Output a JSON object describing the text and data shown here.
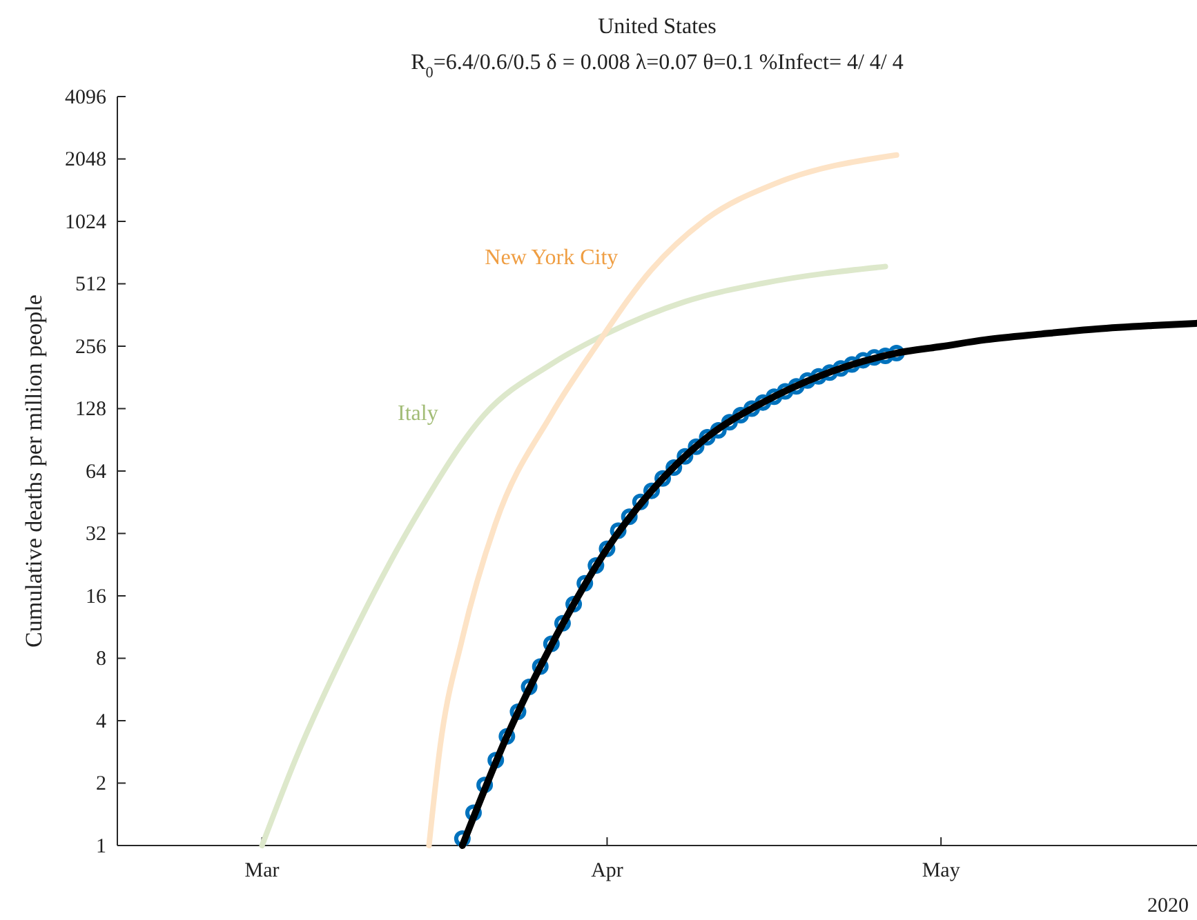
{
  "chart_data": {
    "type": "line",
    "title": "United States",
    "subtitle": "R$_{0}$=6.4/0.6/0.5  δ = 0.008  λ=0.07  θ=0.1  %Infect= 4/ 4/ 4",
    "ylabel": "Cumulative deaths per million people",
    "annotations": [
      "2020"
    ],
    "log": "y",
    "grid": false,
    "legend": false,
    "xlim": [
      "2020-02-17",
      "2020-05-24"
    ],
    "xticks": [
      {
        "value": "2020-03-01",
        "label": "Mar"
      },
      {
        "value": "2020-04-01",
        "label": "Apr"
      },
      {
        "value": "2020-05-01",
        "label": "May"
      }
    ],
    "ylim": [
      1,
      4096
    ],
    "yticks": [
      1,
      2,
      4,
      8,
      16,
      32,
      64,
      128,
      256,
      512,
      1024,
      2048,
      4096
    ],
    "series": [
      {
        "name": "Italy",
        "type": "line",
        "color": "#dde8cb",
        "x": [
          "2020-03-01",
          "2020-03-04",
          "2020-03-09",
          "2020-03-15",
          "2020-03-21",
          "2020-03-27",
          "2020-04-01",
          "2020-04-08",
          "2020-04-15",
          "2020-04-26"
        ],
        "values": [
          1,
          2.6,
          10,
          40,
          120,
          210,
          295,
          420,
          515,
          620
        ]
      },
      {
        "name": "New York City",
        "type": "line",
        "color": "#fde3c6",
        "x": [
          "2020-03-16",
          "2020-03-17",
          "2020-03-19",
          "2020-03-22",
          "2020-03-27",
          "2020-03-31",
          "2020-04-05",
          "2020-04-10",
          "2020-04-16",
          "2020-04-27"
        ],
        "values": [
          1,
          3,
          10,
          36,
          120,
          256,
          600,
          1060,
          1550,
          2140
        ]
      },
      {
        "type": "scatter",
        "color": "#0072bd",
        "marker": "circle",
        "x": [
          "2020-03-19",
          "2020-03-20",
          "2020-03-21",
          "2020-03-22",
          "2020-03-23",
          "2020-03-24",
          "2020-03-25",
          "2020-03-26",
          "2020-03-27",
          "2020-03-28",
          "2020-03-29",
          "2020-03-30",
          "2020-03-31",
          "2020-04-01",
          "2020-04-02",
          "2020-04-03",
          "2020-04-04",
          "2020-04-05",
          "2020-04-06",
          "2020-04-07",
          "2020-04-08",
          "2020-04-09",
          "2020-04-10",
          "2020-04-11",
          "2020-04-12",
          "2020-04-13",
          "2020-04-14",
          "2020-04-15",
          "2020-04-16",
          "2020-04-17",
          "2020-04-18",
          "2020-04-19",
          "2020-04-20",
          "2020-04-21",
          "2020-04-22",
          "2020-04-23",
          "2020-04-24",
          "2020-04-25",
          "2020-04-26",
          "2020-04-27"
        ],
        "values": [
          1.08,
          1.44,
          1.96,
          2.58,
          3.36,
          4.42,
          5.82,
          7.3,
          9.4,
          11.8,
          14.6,
          18.4,
          22.4,
          27,
          33,
          38.5,
          45.4,
          51.4,
          58.9,
          66.5,
          75.3,
          83.8,
          93.2,
          100.6,
          110,
          119,
          128,
          137,
          146,
          155,
          164,
          175,
          183,
          191,
          200,
          209,
          219,
          226,
          230,
          237
        ]
      },
      {
        "type": "line",
        "color": "#000000",
        "x": [
          "2020-03-19",
          "2020-03-23",
          "2020-03-26",
          "2020-03-29",
          "2020-04-01",
          "2020-04-05",
          "2020-04-10",
          "2020-04-15",
          "2020-04-20",
          "2020-04-27",
          "2020-05-01",
          "2020-05-05",
          "2020-05-10",
          "2020-05-15",
          "2020-05-20",
          "2020-05-24"
        ],
        "values": [
          1,
          3.36,
          7.3,
          14.6,
          27,
          51.4,
          93.2,
          137,
          183,
          237,
          255,
          275,
          293,
          310,
          322,
          330
        ]
      }
    ]
  }
}
